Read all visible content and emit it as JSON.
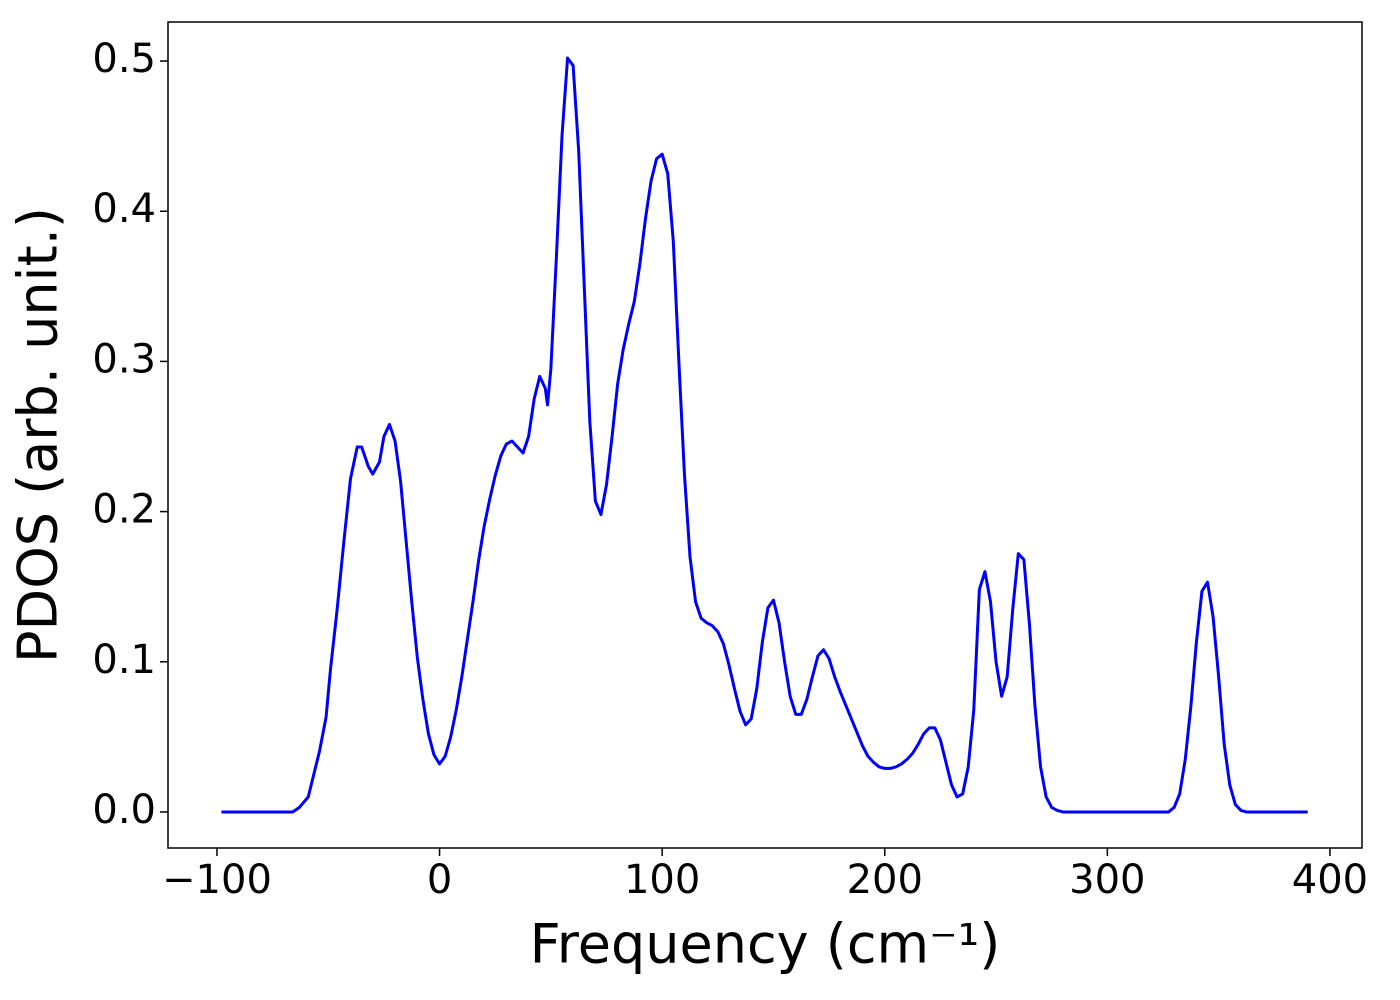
{
  "chart_data": {
    "type": "line",
    "x_label": "Frequency (cm⁻¹)",
    "y_label": "PDOS (arb. unit.)",
    "xlim": [
      -122,
      414.4
    ],
    "ylim": [
      -0.024,
      0.526
    ],
    "xticks": [
      {
        "value": -100,
        "label": "−100"
      },
      0,
      100,
      200,
      300,
      400
    ],
    "yticks": [
      {
        "value": 0,
        "label": "0.0"
      },
      0.1,
      0.2,
      0.3,
      0.4,
      0.5
    ],
    "grid": false,
    "series": [
      {
        "color": "#0000ff",
        "x": [
          -98,
          -66,
          -63,
          -59,
          -57,
          -54,
          -51,
          -49,
          -46,
          -43,
          -40,
          -37,
          -35,
          -32,
          -30,
          -27,
          -25,
          -22.5,
          -20,
          -17.5,
          -15,
          -12.5,
          -10,
          -7.5,
          -5,
          -2.5,
          0,
          2.5,
          5,
          7.5,
          10,
          12.5,
          15,
          17.5,
          20,
          22.5,
          25,
          27.5,
          30,
          32.5,
          35,
          37.5,
          40,
          42.5,
          45,
          47.5,
          48.5,
          50,
          52.5,
          55,
          57.5,
          60,
          62.5,
          65,
          67.5,
          70,
          72.5,
          75,
          77.5,
          80,
          82.5,
          85,
          87.5,
          90,
          92.5,
          95,
          97.5,
          100,
          102.5,
          105,
          107.5,
          110,
          112.5,
          115,
          117.5,
          120,
          122.5,
          125,
          127.5,
          130,
          132.5,
          135,
          137.5,
          140,
          142.5,
          145,
          147.5,
          150,
          152.5,
          155,
          157.5,
          160,
          162.5,
          165,
          167.5,
          170,
          172.5,
          175,
          177.5,
          180,
          182.5,
          185,
          187.5,
          190,
          192.5,
          195,
          197.5,
          200,
          202.5,
          205,
          207.5,
          210,
          212.5,
          215,
          217.5,
          220,
          222.5,
          225,
          227.5,
          230,
          232.5,
          235,
          237.5,
          240,
          242.5,
          245,
          247.5,
          250,
          252.5,
          255,
          257.5,
          260,
          262.5,
          265,
          267.5,
          270,
          272.5,
          275,
          277.5,
          280,
          300,
          327.5,
          330,
          332.5,
          335,
          337.5,
          340,
          342.5,
          345,
          347.5,
          350,
          352.5,
          355,
          357.5,
          360,
          362.5,
          390
        ],
        "values": [
          0,
          0,
          0.003,
          0.01,
          0.022,
          0.04,
          0.063,
          0.095,
          0.135,
          0.18,
          0.222,
          0.243,
          0.243,
          0.23,
          0.225,
          0.233,
          0.25,
          0.258,
          0.247,
          0.22,
          0.18,
          0.14,
          0.103,
          0.075,
          0.052,
          0.038,
          0.032,
          0.037,
          0.05,
          0.068,
          0.09,
          0.115,
          0.14,
          0.167,
          0.19,
          0.208,
          0.224,
          0.237,
          0.245,
          0.247,
          0.243,
          0.239,
          0.25,
          0.275,
          0.29,
          0.282,
          0.271,
          0.295,
          0.37,
          0.45,
          0.502,
          0.497,
          0.44,
          0.35,
          0.26,
          0.207,
          0.198,
          0.218,
          0.25,
          0.285,
          0.308,
          0.325,
          0.34,
          0.365,
          0.395,
          0.42,
          0.435,
          0.438,
          0.425,
          0.38,
          0.3,
          0.225,
          0.17,
          0.14,
          0.129,
          0.126,
          0.124,
          0.12,
          0.112,
          0.098,
          0.082,
          0.067,
          0.058,
          0.062,
          0.082,
          0.113,
          0.136,
          0.141,
          0.126,
          0.1,
          0.077,
          0.065,
          0.065,
          0.075,
          0.09,
          0.104,
          0.108,
          0.102,
          0.09,
          0.08,
          0.071,
          0.062,
          0.053,
          0.044,
          0.037,
          0.033,
          0.03,
          0.029,
          0.029,
          0.03,
          0.032,
          0.035,
          0.039,
          0.045,
          0.052,
          0.056,
          0.056,
          0.048,
          0.033,
          0.018,
          0.01,
          0.012,
          0.03,
          0.068,
          0.148,
          0.16,
          0.14,
          0.1,
          0.077,
          0.09,
          0.135,
          0.172,
          0.168,
          0.125,
          0.07,
          0.03,
          0.01,
          0.003,
          0.001,
          0,
          0,
          0,
          0.003,
          0.012,
          0.035,
          0.07,
          0.113,
          0.147,
          0.153,
          0.13,
          0.09,
          0.045,
          0.018,
          0.005,
          0.001,
          0,
          0
        ]
      }
    ]
  }
}
